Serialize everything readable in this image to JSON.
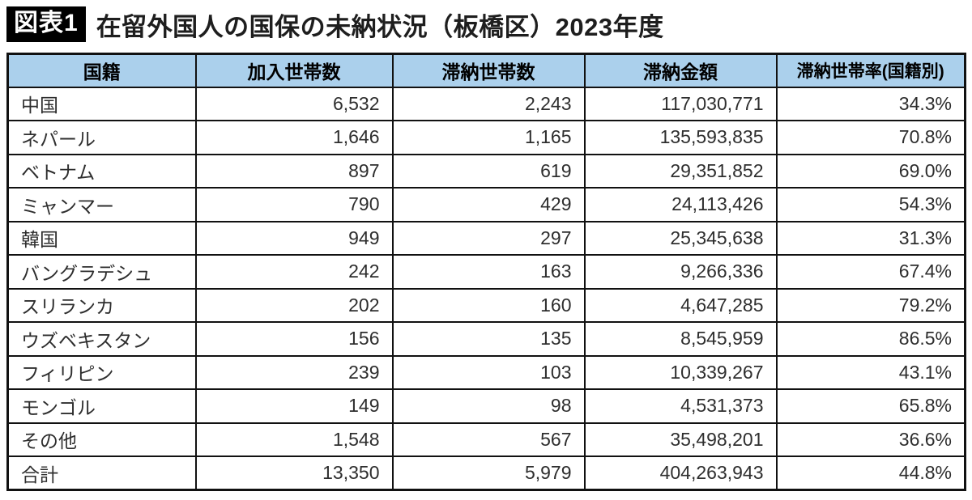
{
  "header": {
    "badge": "図表1",
    "title": "在留外国人の国保の未納状況（板橋区）2023年度"
  },
  "table": {
    "headers": [
      "国籍",
      "加入世帯数",
      "滞納世帯数",
      "滞納金額",
      "滞納世帯率(国籍別)"
    ],
    "rows": [
      {
        "cells": [
          "中国",
          "6,532",
          "2,243",
          "117,030,771",
          "34.3%"
        ]
      },
      {
        "cells": [
          "ネパール",
          "1,646",
          "1,165",
          "135,593,835",
          "70.8%"
        ]
      },
      {
        "cells": [
          "ベトナム",
          "897",
          "619",
          "29,351,852",
          "69.0%"
        ]
      },
      {
        "cells": [
          "ミャンマー",
          "790",
          "429",
          "24,113,426",
          "54.3%"
        ]
      },
      {
        "cells": [
          "韓国",
          "949",
          "297",
          "25,345,638",
          "31.3%"
        ]
      },
      {
        "cells": [
          "バングラデシュ",
          "242",
          "163",
          "9,266,336",
          "67.4%"
        ]
      },
      {
        "cells": [
          "スリランカ",
          "202",
          "160",
          "4,647,285",
          "79.2%"
        ]
      },
      {
        "cells": [
          "ウズベキスタン",
          "156",
          "135",
          "8,545,959",
          "86.5%"
        ]
      },
      {
        "cells": [
          "フィリピン",
          "239",
          "103",
          "10,339,267",
          "43.1%"
        ]
      },
      {
        "cells": [
          "モンゴル",
          "149",
          "98",
          "4,531,373",
          "65.8%"
        ]
      },
      {
        "cells": [
          "その他",
          "1,548",
          "567",
          "35,498,201",
          "36.6%"
        ]
      },
      {
        "cells": [
          "合計",
          "13,350",
          "5,979",
          "404,263,943",
          "44.8%"
        ]
      }
    ]
  },
  "colors": {
    "header_bg": "#abd0ec",
    "border": "#111111",
    "badge_bg": "#000000",
    "badge_text": "#ffffff"
  },
  "chart_data": {
    "type": "table",
    "title": "図表1 在留外国人の国保の未納状況（板橋区）2023年度",
    "columns": [
      "国籍",
      "加入世帯数",
      "滞納世帯数",
      "滞納金額",
      "滞納世帯率(国籍別)"
    ],
    "rows": [
      [
        "中国",
        6532,
        2243,
        117030771,
        "34.3%"
      ],
      [
        "ネパール",
        1646,
        1165,
        135593835,
        "70.8%"
      ],
      [
        "ベトナム",
        897,
        619,
        29351852,
        "69.0%"
      ],
      [
        "ミャンマー",
        790,
        429,
        24113426,
        "54.3%"
      ],
      [
        "韓国",
        949,
        297,
        25345638,
        "31.3%"
      ],
      [
        "バングラデシュ",
        242,
        163,
        9266336,
        "67.4%"
      ],
      [
        "スリランカ",
        202,
        160,
        4647285,
        "79.2%"
      ],
      [
        "ウズベキスタン",
        156,
        135,
        8545959,
        "86.5%"
      ],
      [
        "フィリピン",
        239,
        103,
        10339267,
        "43.1%"
      ],
      [
        "モンゴル",
        149,
        98,
        4531373,
        "65.8%"
      ],
      [
        "その他",
        1548,
        567,
        35498201,
        "36.6%"
      ],
      [
        "合計",
        13350,
        5979,
        404263943,
        "44.8%"
      ]
    ]
  }
}
